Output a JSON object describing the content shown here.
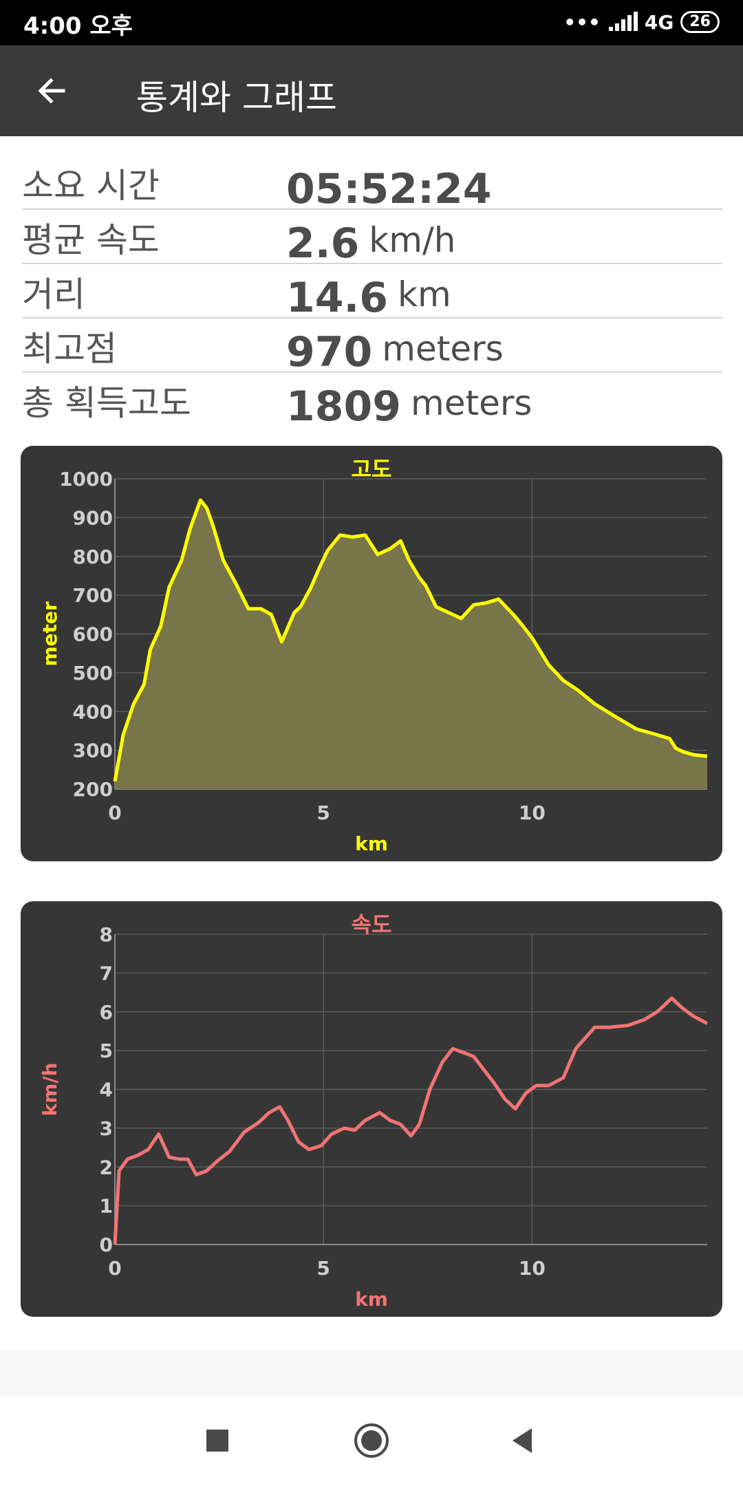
{
  "status_bar": {
    "time": "4:00 오후",
    "network": "4G",
    "battery": "26"
  },
  "app_bar": {
    "title": "통계와 그래프"
  },
  "stats": [
    {
      "label": "소요 시간",
      "value": "05:52:24",
      "unit": ""
    },
    {
      "label": "평균 속도",
      "value": "2.6",
      "unit": "km/h"
    },
    {
      "label": "거리",
      "value": "14.6",
      "unit": "km"
    },
    {
      "label": "최고점",
      "value": "970",
      "unit": "meters"
    },
    {
      "label": "총 획득고도",
      "value": "1809",
      "unit": "meters"
    }
  ],
  "chart_data": [
    {
      "type": "area",
      "title": "고도",
      "xlabel": "km",
      "ylabel": "meter",
      "color": "#ffff00",
      "fill": "#78754a",
      "xlim": [
        0,
        14.2
      ],
      "ylim": [
        200,
        1000
      ],
      "xticks": [
        0,
        5,
        10
      ],
      "yticks": [
        200,
        300,
        400,
        500,
        600,
        700,
        800,
        900,
        1000
      ],
      "grid": true,
      "x": [
        0,
        0.2,
        0.45,
        0.7,
        0.85,
        1.1,
        1.3,
        1.6,
        1.8,
        2.05,
        2.2,
        2.35,
        2.6,
        2.9,
        3.2,
        3.5,
        3.75,
        4.0,
        4.3,
        4.45,
        4.7,
        4.9,
        5.1,
        5.4,
        5.7,
        6.0,
        6.3,
        6.6,
        6.85,
        7.05,
        7.3,
        7.45,
        7.7,
        8.0,
        8.3,
        8.6,
        8.9,
        9.2,
        9.55,
        9.75,
        10.0,
        10.4,
        10.75,
        11.1,
        11.5,
        11.95,
        12.5,
        13.0,
        13.3,
        13.45,
        13.65,
        13.9,
        14.2
      ],
      "y": [
        220,
        340,
        420,
        470,
        560,
        620,
        720,
        790,
        870,
        945,
        925,
        880,
        790,
        730,
        665,
        665,
        650,
        580,
        655,
        670,
        720,
        770,
        815,
        855,
        850,
        855,
        805,
        820,
        840,
        790,
        745,
        725,
        670,
        655,
        640,
        675,
        680,
        690,
        650,
        625,
        590,
        520,
        480,
        455,
        420,
        390,
        355,
        340,
        330,
        305,
        295,
        288,
        285
      ]
    },
    {
      "type": "line",
      "title": "속도",
      "xlabel": "km",
      "ylabel": "km/h",
      "color": "#f17474",
      "xlim": [
        0,
        14.2
      ],
      "ylim": [
        0,
        8
      ],
      "xticks": [
        0,
        5,
        10
      ],
      "yticks": [
        0,
        1,
        2,
        3,
        4,
        5,
        6,
        7,
        8
      ],
      "grid": true,
      "x": [
        0,
        0.1,
        0.3,
        0.55,
        0.8,
        1.05,
        1.3,
        1.55,
        1.75,
        1.95,
        2.2,
        2.45,
        2.75,
        3.1,
        3.45,
        3.7,
        3.95,
        4.15,
        4.4,
        4.65,
        4.95,
        5.2,
        5.5,
        5.75,
        6.0,
        6.35,
        6.6,
        6.85,
        7.1,
        7.3,
        7.55,
        7.85,
        8.1,
        8.35,
        8.6,
        8.85,
        9.1,
        9.35,
        9.6,
        9.85,
        10.1,
        10.4,
        10.75,
        11.05,
        11.5,
        11.85,
        12.3,
        12.7,
        13.0,
        13.35,
        13.6,
        13.85,
        14.2
      ],
      "y": [
        0,
        1.9,
        2.2,
        2.3,
        2.45,
        2.85,
        2.25,
        2.2,
        2.2,
        1.8,
        1.9,
        2.15,
        2.4,
        2.9,
        3.15,
        3.4,
        3.55,
        3.2,
        2.65,
        2.45,
        2.55,
        2.85,
        3.0,
        2.95,
        3.2,
        3.4,
        3.2,
        3.1,
        2.8,
        3.1,
        4.0,
        4.7,
        5.05,
        4.95,
        4.85,
        4.5,
        4.15,
        3.75,
        3.5,
        3.9,
        4.1,
        4.1,
        4.3,
        5.05,
        5.6,
        5.6,
        5.65,
        5.8,
        6.0,
        6.35,
        6.1,
        5.9,
        5.7
      ]
    }
  ]
}
